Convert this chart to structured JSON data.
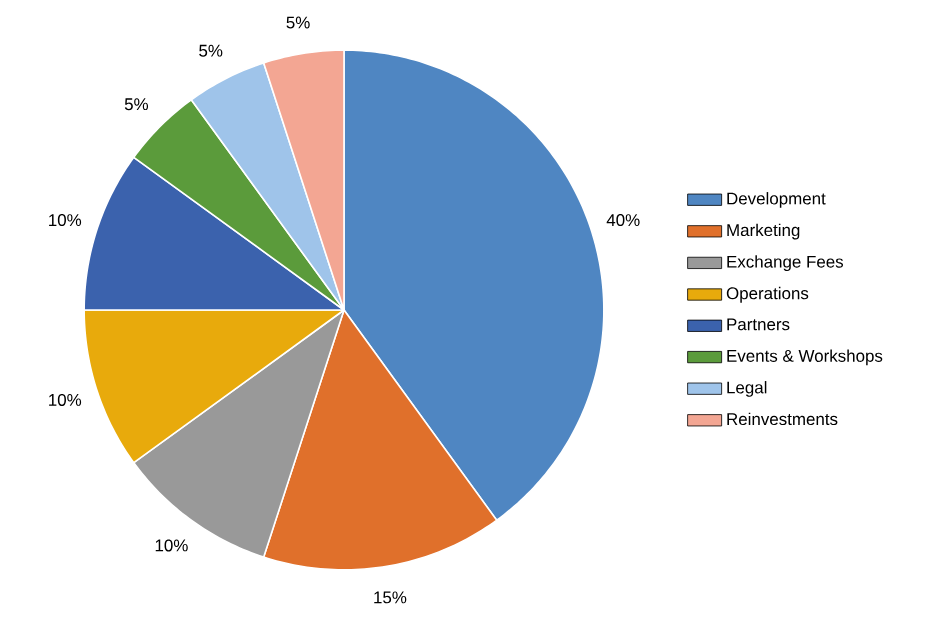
{
  "chart_data": {
    "type": "pie",
    "categories": [
      "Development",
      "Marketing",
      "Exchange Fees",
      "Operations",
      "Partners",
      "Events & Workshops",
      "Legal",
      "Reinvestments"
    ],
    "values": [
      40,
      15,
      10,
      10,
      10,
      5,
      5,
      5
    ],
    "colors": [
      "#4f86c2",
      "#e0702b",
      "#999999",
      "#e8aa0c",
      "#3b62ad",
      "#5b9b3b",
      "#9fc4ea",
      "#f3a693"
    ],
    "value_labels": [
      "40%",
      "15%",
      "10%",
      "10%",
      "10%",
      "5%",
      "5%",
      "5%"
    ],
    "legend": "right"
  }
}
